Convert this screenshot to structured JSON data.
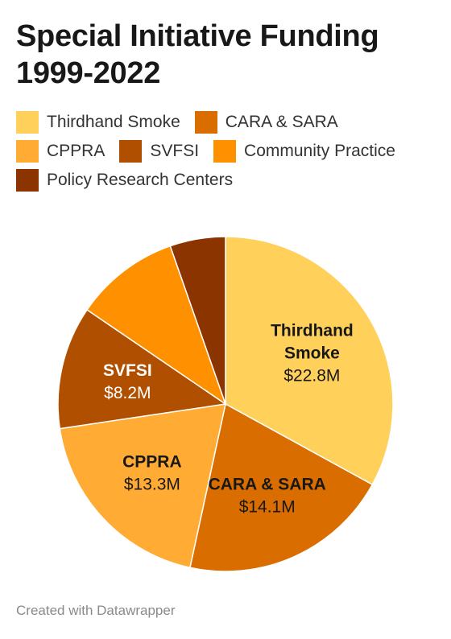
{
  "title_line1": "Special Initiative Funding",
  "title_line2": "1999-2022",
  "footer": "Created with Datawrapper",
  "legend": [
    {
      "label": "Thirdhand Smoke",
      "color": "#ffd05a"
    },
    {
      "label": "CARA & SARA",
      "color": "#d96d00"
    },
    {
      "label": "CPPRA",
      "color": "#ffab34"
    },
    {
      "label": "SVFSI",
      "color": "#b14f00"
    },
    {
      "label": "Community Practice",
      "color": "#ff9000"
    },
    {
      "label": "Policy Research Centers",
      "color": "#8c3400"
    }
  ],
  "chart_data": {
    "type": "pie",
    "title": "Special Initiative Funding 1999-2022",
    "legend_position": "top",
    "slices": [
      {
        "name": "Thirdhand Smoke",
        "value": 22.8,
        "label": "$22.8M",
        "color": "#ffd05a",
        "name_lines": [
          "Thirdhand",
          "Smoke"
        ]
      },
      {
        "name": "CARA & SARA",
        "value": 14.1,
        "label": "$14.1M",
        "color": "#d96d00",
        "name_lines": [
          "CARA & SARA"
        ]
      },
      {
        "name": "CPPRA",
        "value": 13.3,
        "label": "$13.3M",
        "color": "#ffab34",
        "name_lines": [
          "CPPRA"
        ]
      },
      {
        "name": "SVFSI",
        "value": 8.2,
        "label": "$8.2M",
        "color": "#b14f00",
        "name_lines": [
          "SVFSI"
        ]
      },
      {
        "name": "Community Practice",
        "value": 7.0,
        "label": "",
        "color": "#ff9000",
        "name_lines": []
      },
      {
        "name": "Policy Research Centers",
        "value": 3.7,
        "label": "",
        "color": "#8c3400",
        "name_lines": []
      }
    ]
  }
}
